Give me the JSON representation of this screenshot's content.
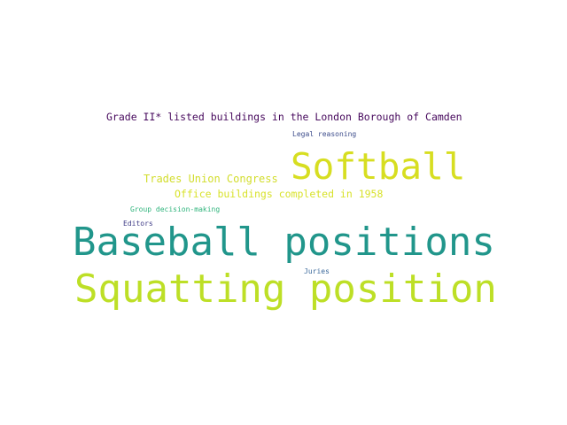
{
  "words": [
    {
      "key": "grade",
      "text": "Grade II* listed buildings in the London Borough of Camden",
      "color": "#46085c"
    },
    {
      "key": "legal",
      "text": "Legal reasoning",
      "color": "#3b4b8a"
    },
    {
      "key": "softball",
      "text": "Softball",
      "color": "#d7de21"
    },
    {
      "key": "trades",
      "text": "Trades Union Congress",
      "color": "#d2dd2c"
    },
    {
      "key": "office",
      "text": "Office buildings completed in 1958",
      "color": "#d8e22b"
    },
    {
      "key": "group",
      "text": "Group decision-making",
      "color": "#2fb47c"
    },
    {
      "key": "editors",
      "text": "Editors",
      "color": "#3e3b86"
    },
    {
      "key": "baseball",
      "text": "Baseball positions",
      "color": "#21968b"
    },
    {
      "key": "juries",
      "text": "Juries",
      "color": "#3c6a9c"
    },
    {
      "key": "squatting",
      "text": "Squatting position",
      "color": "#bddf26"
    }
  ]
}
